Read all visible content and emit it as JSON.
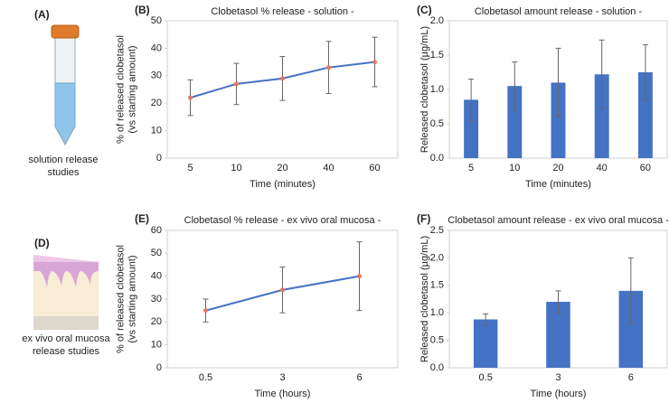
{
  "illustrations": [
    {
      "label": "(A)",
      "caption": [
        "solution release",
        "studies"
      ]
    },
    {
      "label": "(D)",
      "caption": [
        "ex vivo oral mucosa",
        "release studies"
      ]
    }
  ],
  "chart_data": [
    {
      "type": "line",
      "panel": "(B)",
      "title": "Clobetasol % release - solution -",
      "categories": [
        "5",
        "10",
        "20",
        "40",
        "60"
      ],
      "values": [
        22,
        27,
        29,
        33,
        35
      ],
      "errors": [
        6.5,
        7.5,
        8,
        9.5,
        9
      ],
      "color": "#4472c4",
      "marker_color": "#e07a5f",
      "ylim": [
        0,
        50
      ],
      "yticks": [
        0,
        10,
        20,
        30,
        40,
        50
      ],
      "grid": false,
      "xlabel": "Time (minutes)",
      "ylabel": [
        "% of released clobetasol",
        "(vs starting amount)"
      ]
    },
    {
      "type": "bar",
      "panel": "(C)",
      "title": "Clobetasol amount release - solution -",
      "categories": [
        "5",
        "10",
        "20",
        "40",
        "60"
      ],
      "values": [
        0.85,
        1.05,
        1.1,
        1.22,
        1.25
      ],
      "errors": [
        0.3,
        0.35,
        0.5,
        0.5,
        0.4
      ],
      "color": "#4472c4",
      "ylim": [
        0,
        2
      ],
      "yticks": [
        {
          "value": 0,
          "label": "0.0"
        },
        {
          "value": 0.5,
          "label": "0.5"
        },
        {
          "value": 1,
          "label": "1.0"
        },
        {
          "value": 1.5,
          "label": "1.5"
        },
        {
          "value": 2,
          "label": "2.0"
        }
      ],
      "grid": false,
      "xlabel": "Time (minutes)",
      "ylabel": [
        "Released clobetasol (µg/mL)"
      ]
    },
    {
      "type": "line",
      "panel": "(E)",
      "title": "Clobetasol % release - ex vivo oral mucosa -",
      "categories": [
        "0.5",
        "3",
        "6"
      ],
      "values": [
        25,
        34,
        40
      ],
      "errors": [
        5,
        10,
        15
      ],
      "color": "#4472c4",
      "marker_color": "#e07a5f",
      "ylim": [
        0,
        60
      ],
      "yticks": [
        0,
        10,
        20,
        30,
        40,
        50,
        60
      ],
      "grid": false,
      "xlabel": "Time (hours)",
      "ylabel": [
        "% of released clobetasol",
        "(vs starting amount)"
      ]
    },
    {
      "type": "bar",
      "panel": "(F)",
      "title": "Clobetasol amount release - ex vivo oral mucosa -",
      "categories": [
        "0.5",
        "3",
        "6"
      ],
      "values": [
        0.88,
        1.2,
        1.4
      ],
      "errors": [
        0.1,
        0.2,
        0.6
      ],
      "color": "#4472c4",
      "ylim": [
        0,
        2.5
      ],
      "yticks": [
        {
          "value": 0,
          "label": "0.0"
        },
        {
          "value": 0.5,
          "label": "0.5"
        },
        {
          "value": 1,
          "label": "1.0"
        },
        {
          "value": 1.5,
          "label": "1.5"
        },
        {
          "value": 2,
          "label": "2.0"
        },
        {
          "value": 2.5,
          "label": "2.5"
        }
      ],
      "grid": false,
      "xlabel": "Time (hours)",
      "ylabel": [
        "Released clobetasol (µg/mL)"
      ]
    }
  ]
}
